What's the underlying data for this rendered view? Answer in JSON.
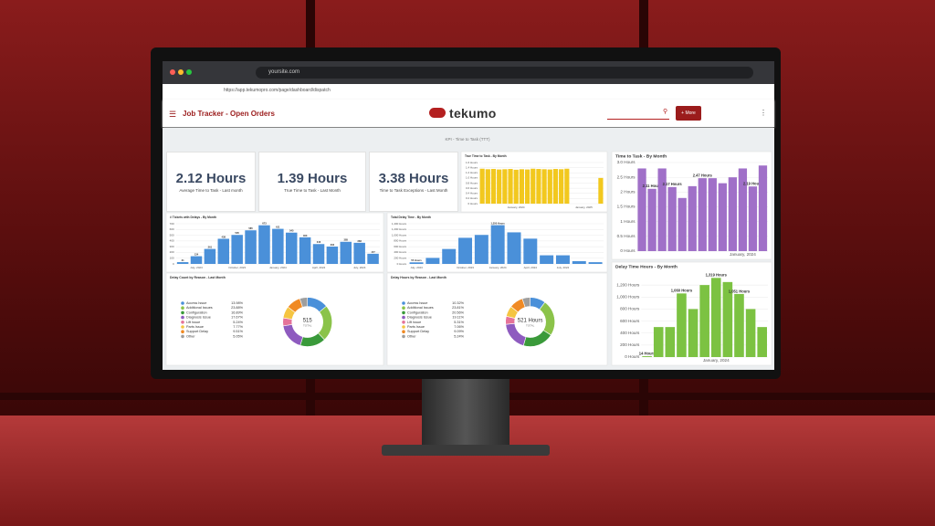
{
  "browser": {
    "tab_url": "yoursite.com",
    "address": "https://app.tekumopro.com/page/dashboard/dispatch"
  },
  "app": {
    "title": "Job Tracker - Open Orders",
    "logo": "tekumo",
    "button": "+ More"
  },
  "dashboard": {
    "banner": "KPI - Time to Task (TTT)",
    "kpis": [
      {
        "value": "2.12 Hours",
        "label": "Average Time to Task - Last month"
      },
      {
        "value": "1.39 Hours",
        "label": "True Time to Task - Last Month"
      },
      {
        "value": "3.38 Hours",
        "label": "Time to Task Exceptions - Last Month"
      }
    ],
    "charts": [
      {
        "type": "bar",
        "title": "True Time to Task - By Month",
        "color": "#f2c81e",
        "categories": [
          null,
          null,
          null,
          null,
          null,
          null,
          "January, 2024",
          null,
          null,
          null,
          null,
          null,
          null,
          null,
          null,
          null,
          null,
          null,
          "January, 2025",
          null,
          null,
          null
        ],
        "values": [
          1.36,
          1.34,
          1.35,
          1.33,
          1.34,
          1.35,
          1.32,
          1.34,
          1.33,
          1.36,
          1.35,
          1.34,
          1.33,
          1.35,
          1.34,
          1.36,
          null,
          null,
          null,
          null,
          null,
          1.0
        ],
        "ylim": [
          0,
          1.6
        ],
        "yticks": [
          {
            "value": 0,
            "label": "0 Hours"
          },
          {
            "value": 0.2,
            "label": "0.2 Hours"
          },
          {
            "value": 0.4,
            "label": "0.4 Hours"
          },
          {
            "value": 0.6,
            "label": "0.6 Hours"
          },
          {
            "value": 0.8,
            "label": "0.8 Hours"
          },
          {
            "value": 1.0,
            "label": "1.0 Hours"
          },
          {
            "value": 1.2,
            "label": "1.2 Hours"
          },
          {
            "value": 1.4,
            "label": "1.4 Hours"
          },
          {
            "value": 1.6,
            "label": "1.6 Hours"
          }
        ]
      },
      {
        "type": "bar",
        "title": "Time to Task - By Month",
        "color": "#a070c8",
        "categories": [
          null,
          null,
          null,
          null,
          null,
          null,
          null,
          null,
          null,
          null,
          "January, 2024",
          null,
          null
        ],
        "values": [
          2.8,
          2.11,
          2.8,
          2.17,
          1.8,
          2.2,
          2.47,
          2.47,
          2.3,
          2.5,
          2.8,
          2.19,
          2.9
        ],
        "value_labels": [
          null,
          "2.11 Hours",
          null,
          "2.17 Hours",
          null,
          null,
          "2.47 Hours",
          null,
          null,
          null,
          null,
          "2.19 Hours",
          null
        ],
        "ylim": [
          0,
          3.0
        ],
        "yticks": [
          {
            "value": 0,
            "label": "0 Hours"
          },
          {
            "value": 0.5,
            "label": "0.5 Hours"
          },
          {
            "value": 1,
            "label": "1 Hours"
          },
          {
            "value": 1.5,
            "label": "1.5 Hours"
          },
          {
            "value": 2,
            "label": "2 Hours"
          },
          {
            "value": 2.5,
            "label": "2.5 Hours"
          },
          {
            "value": 3.0,
            "label": "3.0 Hours"
          }
        ]
      },
      {
        "type": "bar",
        "title": "# Tickets with Delays - By Month",
        "color": "#4a90d9",
        "data_labels": true,
        "categories": [
          null,
          "July, 2023",
          null,
          null,
          "October, 2023",
          null,
          null,
          "January, 2024",
          null,
          null,
          "April, 2024",
          null,
          null,
          "July, 2024",
          null
        ],
        "values": [
          31,
          134,
          261,
          438,
          505,
          585,
          673,
          611,
          545,
          463,
          346,
          302,
          385,
          368,
          177
        ],
        "ylim": [
          0,
          700
        ],
        "yticks": [
          0,
          100,
          200,
          300,
          400,
          500,
          600,
          700
        ]
      },
      {
        "type": "bar",
        "title": "Total Delay Time - By Month",
        "color": "#4a90d9",
        "categories": [
          "July, 2023",
          null,
          null,
          "October, 2023",
          null,
          "January, 2024",
          null,
          "April, 2024",
          null,
          "July, 2024",
          null,
          null
        ],
        "values": [
          55,
          210,
          520,
          910,
          1010,
          1350,
          1100,
          880,
          300,
          300,
          95,
          60
        ],
        "value_labels": [
          "55 Hours",
          null,
          null,
          null,
          null,
          "1,350 Hours",
          null,
          null,
          null,
          null,
          null,
          null
        ],
        "ylim": [
          0,
          1400
        ],
        "yticks": [
          {
            "value": 0,
            "label": "0 Hours"
          },
          {
            "value": 200,
            "label": "200 Hours"
          },
          {
            "value": 400,
            "label": "400 Hours"
          },
          {
            "value": 600,
            "label": "600 Hours"
          },
          {
            "value": 800,
            "label": "800 Hours"
          },
          {
            "value": 1000,
            "label": "1,000 Hours"
          },
          {
            "value": 1200,
            "label": "1,200 Hours"
          },
          {
            "value": 1400,
            "label": "1,400 Hours"
          }
        ]
      },
      {
        "type": "donut",
        "title": "Delay Count by Reason - Last Month",
        "categories": [
          "Access Issue",
          "Additional Issues",
          "Configuration",
          "Diagnosis Issue",
          "Lift Issue",
          "Parts Issue",
          "Support Delay",
          "Other"
        ],
        "values": [
          13.98,
          23.88,
          16.89,
          17.67,
          5.24,
          7.77,
          9.51,
          5.05
        ],
        "value_labels": [
          "13.98%",
          "23.88%",
          "16.89%",
          "17.67%",
          "5.24%",
          "7.77%",
          "9.51%",
          "5.05%"
        ],
        "colors": [
          "#4a90d9",
          "#8bc34a",
          "#3a9a3a",
          "#8e5bbf",
          "#e57399",
          "#f5c542",
          "#f08a24",
          "#9e9e9e"
        ],
        "center_value": "515",
        "center_label": "TOTAL"
      },
      {
        "type": "donut",
        "title": "Delay Hours by Reason - Last Month",
        "categories": [
          "Access Issue",
          "Additional Issues",
          "Configuration",
          "Diagnosis Issue",
          "Lift Issue",
          "Parts Issue",
          "Support Delay",
          "Other"
        ],
        "values": [
          10.32,
          23.81,
          20.56,
          19.11,
          5.31,
          7.06,
          9.09,
          5.24
        ],
        "value_labels": [
          "10.32%",
          "23.81%",
          "20.56%",
          "19.11%",
          "5.31%",
          "7.06%",
          "9.09%",
          "5.24%"
        ],
        "colors": [
          "#4a90d9",
          "#8bc34a",
          "#3a9a3a",
          "#8e5bbf",
          "#e57399",
          "#f5c542",
          "#f08a24",
          "#9e9e9e"
        ],
        "center_value": "521 Hours",
        "center_label": "TOTAL"
      },
      {
        "type": "bar",
        "title": "Delay Time Hours - By Month",
        "color": "#7cc242",
        "categories": [
          null,
          null,
          null,
          null,
          null,
          null,
          "January, 2024",
          null,
          null,
          null,
          null
        ],
        "values": [
          14,
          500,
          500,
          1060,
          800,
          1200,
          1319,
          1250,
          1051,
          800,
          500
        ],
        "value_labels": [
          "14 Hours",
          null,
          null,
          "1,060 Hours",
          null,
          null,
          "1,319 Hours",
          null,
          "1,051 Hours",
          null,
          null
        ],
        "ylim": [
          0,
          1400
        ],
        "yticks": [
          {
            "value": 0,
            "label": "0 Hours"
          },
          {
            "value": 200,
            "label": "200 Hours"
          },
          {
            "value": 400,
            "label": "400 Hours"
          },
          {
            "value": 600,
            "label": "600 Hours"
          },
          {
            "value": 800,
            "label": "800 Hours"
          },
          {
            "value": 1000,
            "label": "1,000 Hours"
          },
          {
            "value": 1200,
            "label": "1,200 Hours"
          }
        ]
      }
    ]
  }
}
